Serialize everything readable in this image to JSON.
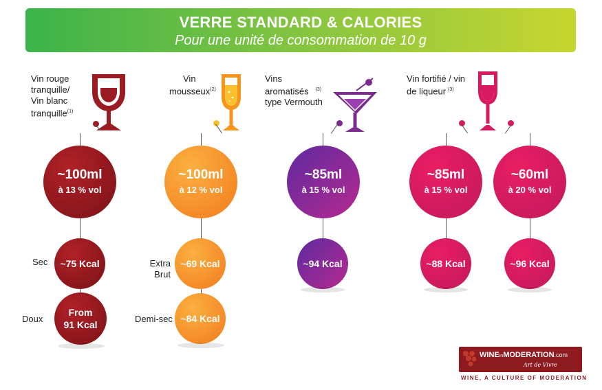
{
  "header": {
    "title": "VERRE STANDARD & CALORIES",
    "subtitle": "Pour une unité de consommation de 10 g"
  },
  "columns": [
    {
      "label_lines": [
        "Vin rouge",
        "tranquille/",
        "Vin blanc",
        "tranquille"
      ],
      "note": "(1)",
      "glass_icon": "red-wine-glass-icon",
      "color": "#9b1b22",
      "volume": "~100ml",
      "abv": "à 13 % vol",
      "rows": [
        {
          "label": "Sec",
          "kcal": "~75 Kcal"
        },
        {
          "label": "Doux",
          "kcal_lines": [
            "From",
            "91 Kcal"
          ]
        }
      ]
    },
    {
      "label_lines": [
        "Vin",
        "mousseux"
      ],
      "note": "(2)",
      "glass_icon": "champagne-flute-icon",
      "color": "#f7941d",
      "volume": "~100ml",
      "abv": "à 12 % vol",
      "rows": [
        {
          "label_lines": [
            "Extra",
            "Brut"
          ],
          "kcal": "~69 Kcal"
        },
        {
          "label": "Demi-sec",
          "kcal": "~84 Kcal"
        }
      ]
    },
    {
      "label_lines": [
        "Vins",
        "aromatisés",
        "type Vermouth"
      ],
      "note": "(3)",
      "glass_icon": "cocktail-glass-icon",
      "color": "#7b2a8f",
      "volume": "~85ml",
      "abv": "à 15  % vol",
      "rows": [
        {
          "kcal": "~94 Kcal"
        }
      ]
    },
    {
      "label_lines": [
        "Vin fortifié / vin",
        "de liqueur"
      ],
      "note": "(3)",
      "glass_icon": "fortified-wine-glass-icon",
      "color": "#d81b60",
      "circles": [
        {
          "volume": "~85ml",
          "abv": "à 15 % vol",
          "kcal": "~88 Kcal"
        },
        {
          "volume": "~60ml",
          "abv": "à 20  % vol",
          "kcal": "~96 Kcal"
        }
      ]
    }
  ],
  "logo": {
    "wine": "WINE",
    "in": "in",
    "moderation": "MODERATION",
    "com": ".com",
    "sub": "Art de Vivre",
    "tagline": "WINE, A CULTURE OF MODERATION"
  }
}
